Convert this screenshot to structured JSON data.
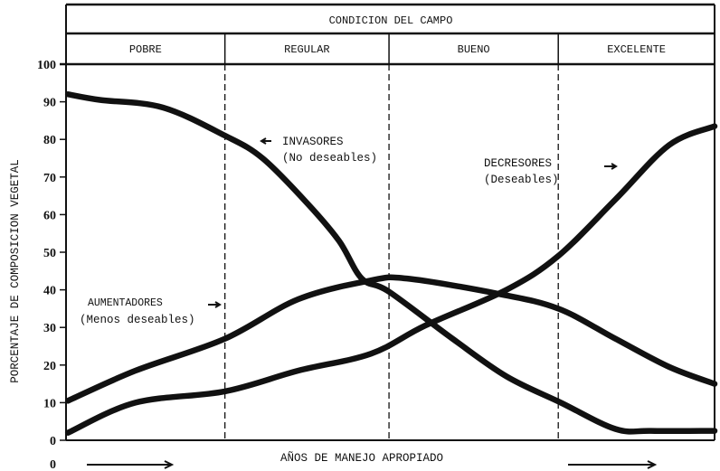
{
  "chart_data": {
    "type": "line",
    "header": {
      "title": "CONDICION DEL CAMPO",
      "categories": [
        "POBRE",
        "REGULAR",
        "BUENO",
        "EXCELENTE"
      ],
      "category_boundaries_x": [
        24.5,
        49.8,
        75.9
      ]
    },
    "ylabel": "PORCENTAJE DE COMPOSICION VEGETAL",
    "xlabel": "AÑOS DE MANEJO APROPIADO",
    "x_start_label": "0",
    "ylim": [
      0,
      100
    ],
    "xlim": [
      0,
      100
    ],
    "yticks": [
      0,
      10,
      20,
      30,
      40,
      50,
      60,
      70,
      80,
      90,
      100
    ],
    "grid": false,
    "series": [
      {
        "name": "INVASORES",
        "name_line2": "(No deseables)",
        "x": [
          0.3,
          5.2,
          14.9,
          24.5,
          30.3,
          37.2,
          42.1,
          45.6,
          49.8,
          59.6,
          67.9,
          76.3,
          84.7,
          90.2,
          100
        ],
        "y": [
          92,
          90.5,
          88.5,
          81,
          75,
          63,
          53,
          43,
          39.5,
          27,
          17,
          10,
          3,
          2.5,
          2.5
        ]
      },
      {
        "name": "AUMENTADORES",
        "name_line2": "(Menos deseables)",
        "x": [
          0.3,
          10.7,
          24.5,
          35.8,
          47.0,
          52.6,
          66.5,
          75.9,
          84.7,
          93.0,
          100
        ],
        "y": [
          10.5,
          18.5,
          27,
          37.5,
          42.5,
          43,
          39,
          35,
          27,
          19.5,
          15
        ]
      },
      {
        "name": "DECRESORES",
        "name_line2": "(Deseables)",
        "x": [
          0.3,
          10.7,
          24.5,
          35.8,
          47.0,
          55.4,
          67.9,
          75.9,
          84.7,
          93.0,
          100
        ],
        "y": [
          2,
          10,
          13,
          18.5,
          23,
          30.5,
          40,
          49,
          64,
          78.5,
          83.5
        ]
      }
    ],
    "colors": {
      "ink": "#111111",
      "background": "#ffffff"
    }
  }
}
